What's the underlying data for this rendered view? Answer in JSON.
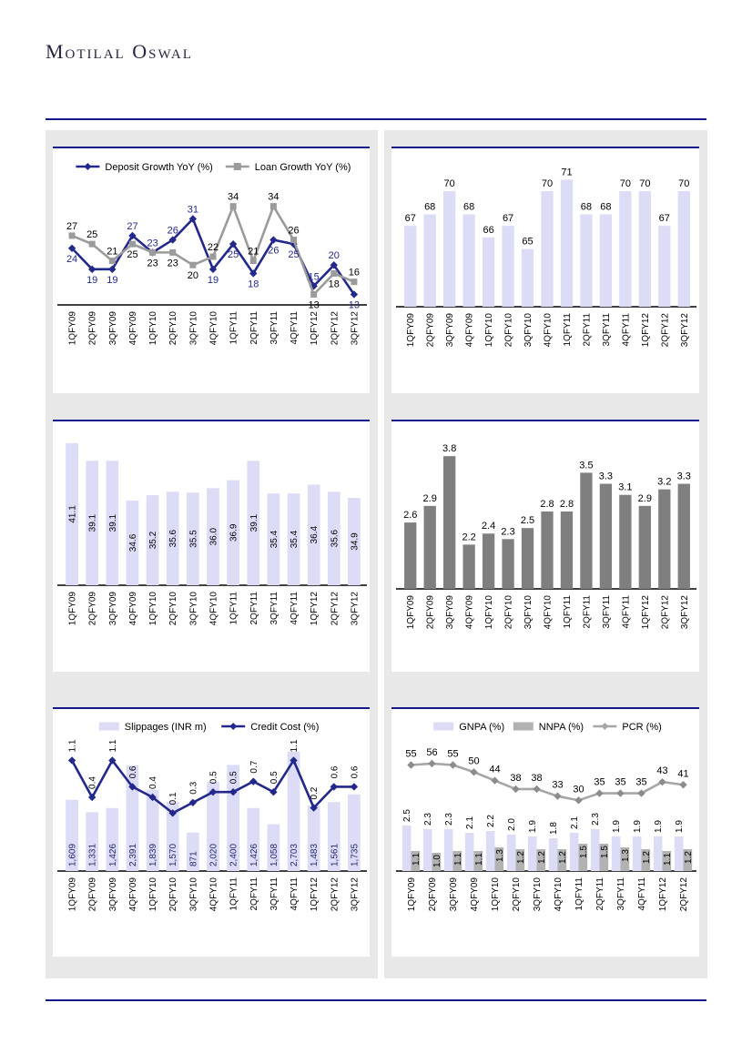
{
  "page": {
    "logo_text": "Motilal Oswal",
    "rule_color": "#17178C",
    "panel_bg": "#E8E8E8"
  },
  "colors": {
    "navy_line": "#23298A",
    "gray_line": "#9B9B9B",
    "lavender_bar": "#DCDCF7",
    "dark_gray_bar": "#7F7F7F",
    "nnpa_gray_bar": "#B2B2B2",
    "pcr_gray_line": "#A6A6A6",
    "label_black": "#000000"
  },
  "chart_data": [
    {
      "type": "line",
      "title": "",
      "legend": true,
      "legend_position": "top",
      "label_mode": "pair",
      "categories": [
        "1QFY09",
        "2QFY09",
        "3QFY09",
        "4QFY09",
        "1QFY10",
        "2QFY10",
        "3QFY10",
        "4QFY10",
        "1QFY11",
        "2QFY11",
        "3QFY11",
        "4QFY11",
        "1QFY12",
        "2QFY12",
        "3QFY12"
      ],
      "series": [
        {
          "name": "Deposit Growth YoY (%)",
          "type": "line",
          "marker": "diamond",
          "color": "#23298A",
          "label_color": "#23298A",
          "decimals": 0,
          "label_size": 11,
          "values": [
            24,
            19,
            19,
            27,
            23,
            26,
            31,
            19,
            25,
            18,
            26,
            25,
            15,
            20,
            13
          ],
          "ylim": [
            10.5,
            40
          ]
        },
        {
          "name": "Loan Growth YoY (%)",
          "type": "line",
          "marker": "square",
          "color": "#9B9B9B",
          "label_color": "#000000",
          "decimals": 0,
          "label_size": 11,
          "values": [
            27,
            25,
            21,
            25,
            23,
            23,
            20,
            22,
            34,
            21,
            34,
            26,
            13,
            18,
            16
          ],
          "ylim": [
            10.5,
            40
          ]
        }
      ]
    },
    {
      "type": "bar",
      "title": "",
      "legend": false,
      "categories": [
        "1QFY09",
        "2QFY09",
        "3QFY09",
        "4QFY09",
        "1QFY10",
        "2QFY10",
        "3QFY10",
        "4QFY10",
        "1QFY11",
        "2QFY11",
        "3QFY11",
        "4QFY11",
        "1QFY12",
        "2QFY12",
        "3QFY12"
      ],
      "series": [
        {
          "name": "",
          "type": "bar",
          "color": "#DCDCF7",
          "label_color": "#000000",
          "decimals": 0,
          "label_size": 11,
          "labels": "above",
          "values": [
            67,
            68,
            70,
            68,
            66,
            67,
            65,
            70,
            71,
            68,
            68,
            70,
            70,
            67,
            70
          ],
          "ylim": [
            60,
            71.5
          ]
        }
      ]
    },
    {
      "type": "bar",
      "title": "",
      "legend": false,
      "categories": [
        "1QFY09",
        "2QFY09",
        "3QFY09",
        "4QFY09",
        "1QFY10",
        "2QFY10",
        "3QFY10",
        "4QFY10",
        "1QFY11",
        "2QFY11",
        "3QFY11",
        "4QFY11",
        "1QFY12",
        "2QFY12",
        "3QFY12"
      ],
      "series": [
        {
          "name": "",
          "type": "bar",
          "color": "#DCDCF7",
          "label_color": "#000000",
          "decimals": 1,
          "label_size": 10,
          "labels": "center-rot",
          "values": [
            41.1,
            39.1,
            39.1,
            34.6,
            35.2,
            35.6,
            35.5,
            36.0,
            36.9,
            39.1,
            35.4,
            35.4,
            36.4,
            35.6,
            34.9
          ],
          "ylim": [
            25,
            41.5
          ]
        }
      ]
    },
    {
      "type": "bar",
      "title": "",
      "legend": false,
      "categories": [
        "1QFY09",
        "2QFY09",
        "3QFY09",
        "4QFY09",
        "1QFY10",
        "2QFY10",
        "3QFY10",
        "4QFY10",
        "1QFY11",
        "2QFY11",
        "3QFY11",
        "4QFY11",
        "1QFY12",
        "2QFY12",
        "3QFY12"
      ],
      "series": [
        {
          "name": "",
          "type": "bar",
          "color": "#7F7F7F",
          "label_color": "#000000",
          "decimals": 1,
          "label_size": 11,
          "labels": "above",
          "values": [
            2.6,
            2.9,
            3.8,
            2.2,
            2.4,
            2.3,
            2.5,
            2.8,
            2.8,
            3.5,
            3.3,
            3.1,
            2.9,
            3.2,
            3.3
          ],
          "ylim": [
            1.4,
            4.0
          ]
        }
      ]
    },
    {
      "type": "combo",
      "title": "",
      "legend": true,
      "legend_position": "top",
      "categories": [
        "1QFY09",
        "2QFY09",
        "3QFY09",
        "4QFY09",
        "1QFY10",
        "2QFY10",
        "3QFY10",
        "4QFY10",
        "1QFY11",
        "2QFY11",
        "3QFY11",
        "4QFY11",
        "1QFY12",
        "2QFY12",
        "3QFY12"
      ],
      "series": [
        {
          "name": "Slippages (INR m)",
          "type": "bar",
          "color": "#DCDCF7",
          "label_color": "#27276B",
          "comma": true,
          "label_size": 10,
          "labels": "base-rot",
          "values": [
            1609,
            1331,
            1426,
            2391,
            1839,
            1570,
            871,
            2020,
            2400,
            1426,
            1058,
            2703,
            1483,
            1561,
            1735
          ],
          "ylim": [
            0,
            2800
          ]
        },
        {
          "name": "Credit Cost (%)",
          "type": "line",
          "marker": "diamond",
          "color": "#23298A",
          "label_color": "#000000",
          "decimals": 1,
          "label_size": 10,
          "labels": "above-rot",
          "values": [
            1.1,
            0.4,
            1.1,
            0.6,
            0.4,
            0.1,
            0.3,
            0.5,
            0.5,
            0.7,
            0.5,
            1.1,
            0.2,
            0.6,
            0.6
          ],
          "ylim": [
            -1,
            1.35
          ]
        }
      ]
    },
    {
      "type": "combo",
      "title": "",
      "legend": true,
      "legend_position": "top",
      "categories": [
        "1QFY09",
        "2QFY09",
        "3QFY09",
        "4QFY09",
        "1QFY10",
        "2QFY10",
        "3QFY10",
        "4QFY10",
        "1QFY11",
        "2QFY11",
        "3QFY11",
        "4QFY11",
        "1QFY12",
        "2QFY12"
      ],
      "series": [
        {
          "name": "GNPA (%)",
          "type": "bar",
          "color": "#DCDCF7",
          "label_color": "#000000",
          "decimals": 1,
          "label_size": 10,
          "labels": "above-rot",
          "values": [
            2.5,
            2.3,
            2.3,
            2.1,
            2.2,
            2.0,
            1.9,
            1.8,
            2.1,
            2.3,
            1.9,
            1.9,
            1.9,
            1.9
          ],
          "ylim": [
            0,
            7.3
          ]
        },
        {
          "name": "NNPA (%)",
          "type": "bar",
          "color": "#B2B2B2",
          "label_color": "#000000",
          "decimals": 1,
          "label_size": 10,
          "labels": "top-rot",
          "values": [
            1.1,
            1.0,
            1.1,
            1.1,
            1.3,
            1.2,
            1.2,
            1.2,
            1.5,
            1.5,
            1.3,
            1.2,
            1.1,
            1.2
          ],
          "ylim": [
            0,
            7.3
          ]
        },
        {
          "name": "PCR (%)",
          "type": "line",
          "marker": "diamond",
          "color": "#A6A6A6",
          "marker_color": "#8C8C8C",
          "label_color": "#000000",
          "decimals": 0,
          "label_size": 11,
          "labels": "above-h",
          "values": [
            55,
            56,
            55,
            50,
            44,
            38,
            38,
            33,
            30,
            35,
            35,
            35,
            43,
            41
          ],
          "ylim": [
            -20,
            74
          ]
        }
      ]
    }
  ]
}
